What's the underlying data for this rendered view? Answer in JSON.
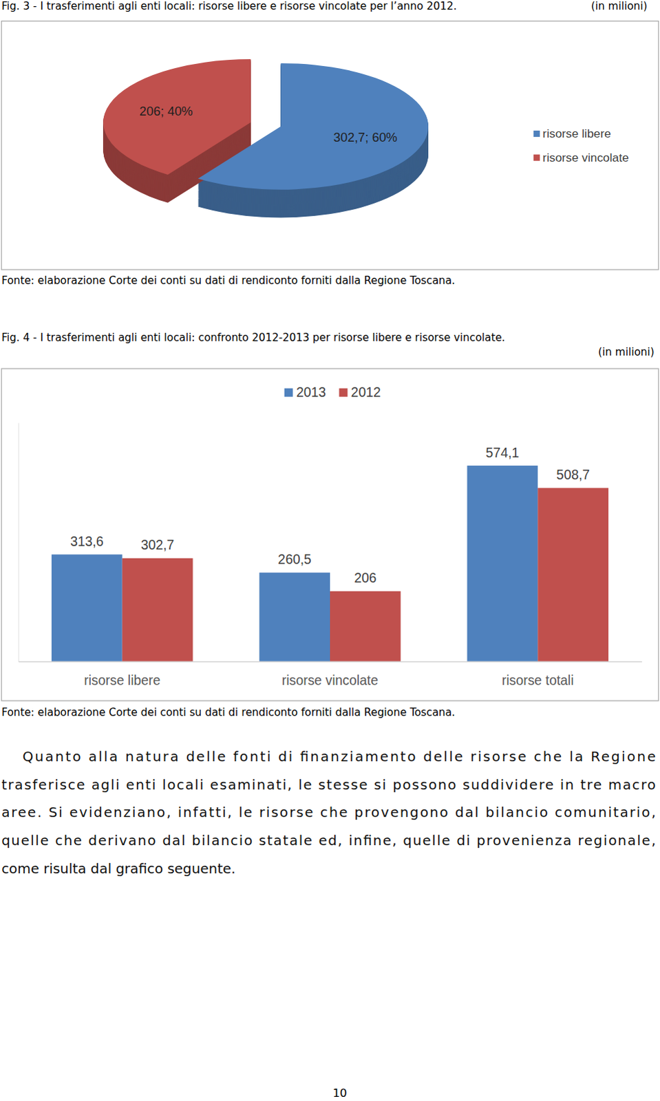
{
  "chart_data": [
    {
      "type": "pie",
      "title": "Fig. 3 - I trasferimenti agli enti locali: risorse libere e risorse vincolate per l’anno 2012.",
      "subtitle": "(in milioni)",
      "annotations": [
        "Fonte: elaborazione Corte dei conti su dati di rendiconto forniti dalla Regione Toscana."
      ],
      "categories": [
        "risorse libere",
        "risorse vincolate"
      ],
      "values": [
        302.7,
        206
      ],
      "value_labels": [
        "302,7; 60%",
        "206; 40%"
      ],
      "colors": [
        "#4f81bd",
        "#c0504d"
      ],
      "legend": "right",
      "data_labels": true
    },
    {
      "type": "bar",
      "title": "Fig. 4 - I trasferimenti agli enti locali: confronto 2012-2013 per risorse libere e risorse vincolate.",
      "subtitle": "(in milioni)",
      "annotations": [
        "Fonte: elaborazione Corte dei conti su dati di rendiconto forniti dalla Regione Toscana."
      ],
      "categories": [
        "risorse libere",
        "risorse vincolate",
        "risorse totali"
      ],
      "series": [
        {
          "name": "2013",
          "color": "#4f81bd",
          "values": [
            313.6,
            260.5,
            574.1
          ],
          "value_labels": [
            "313,6",
            "260,5",
            "574,1"
          ]
        },
        {
          "name": "2012",
          "color": "#c0504d",
          "values": [
            302.7,
            206,
            508.7
          ],
          "value_labels": [
            "302,7",
            "206",
            "508,7"
          ]
        }
      ],
      "ylim": [
        0,
        700
      ],
      "tick_labels": "x",
      "legend": "top",
      "data_labels": true
    }
  ],
  "text": {
    "paragraph_lines": [
      "Quanto alla natura delle fonti di finanziamento delle risorse che la Regione",
      "trasferisce agli enti locali esaminati, le stesse si possono suddividere in tre macro",
      "aree. Si evidenziano, infatti, le risorse che provengono dal bilancio comunitario,",
      "quelle che derivano dal bilancio statale ed, infine, quelle di provenienza regionale,",
      "come risulta dal grafico seguente."
    ],
    "page_number": "10"
  }
}
